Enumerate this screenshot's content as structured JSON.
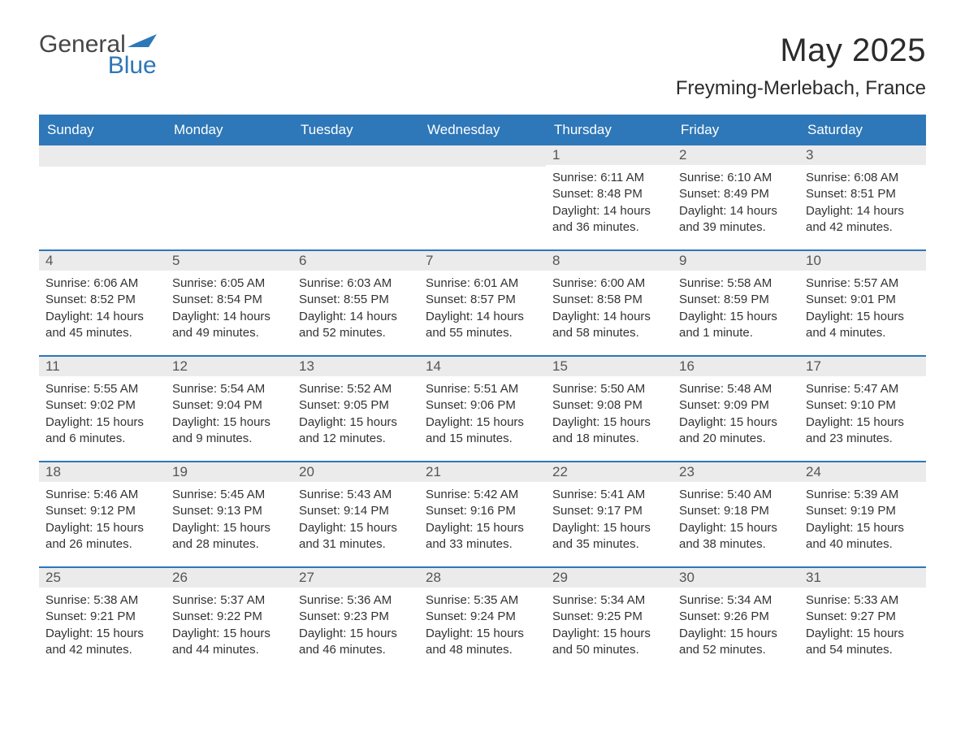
{
  "logo": {
    "general": "General",
    "blue": "Blue"
  },
  "title": "May 2025",
  "location": "Freyming-Merlebach, France",
  "colors": {
    "header_bg": "#2e77b8",
    "header_text": "#ffffff",
    "daynum_bg": "#ebebeb",
    "daynum_text": "#555555",
    "body_text": "#333333",
    "rule": "#2e77b8",
    "page_bg": "#ffffff"
  },
  "day_headers": [
    "Sunday",
    "Monday",
    "Tuesday",
    "Wednesday",
    "Thursday",
    "Friday",
    "Saturday"
  ],
  "weeks": [
    [
      {
        "blank": true
      },
      {
        "blank": true
      },
      {
        "blank": true
      },
      {
        "blank": true
      },
      {
        "n": "1",
        "sunrise": "Sunrise: 6:11 AM",
        "sunset": "Sunset: 8:48 PM",
        "daylight": "Daylight: 14 hours and 36 minutes."
      },
      {
        "n": "2",
        "sunrise": "Sunrise: 6:10 AM",
        "sunset": "Sunset: 8:49 PM",
        "daylight": "Daylight: 14 hours and 39 minutes."
      },
      {
        "n": "3",
        "sunrise": "Sunrise: 6:08 AM",
        "sunset": "Sunset: 8:51 PM",
        "daylight": "Daylight: 14 hours and 42 minutes."
      }
    ],
    [
      {
        "n": "4",
        "sunrise": "Sunrise: 6:06 AM",
        "sunset": "Sunset: 8:52 PM",
        "daylight": "Daylight: 14 hours and 45 minutes."
      },
      {
        "n": "5",
        "sunrise": "Sunrise: 6:05 AM",
        "sunset": "Sunset: 8:54 PM",
        "daylight": "Daylight: 14 hours and 49 minutes."
      },
      {
        "n": "6",
        "sunrise": "Sunrise: 6:03 AM",
        "sunset": "Sunset: 8:55 PM",
        "daylight": "Daylight: 14 hours and 52 minutes."
      },
      {
        "n": "7",
        "sunrise": "Sunrise: 6:01 AM",
        "sunset": "Sunset: 8:57 PM",
        "daylight": "Daylight: 14 hours and 55 minutes."
      },
      {
        "n": "8",
        "sunrise": "Sunrise: 6:00 AM",
        "sunset": "Sunset: 8:58 PM",
        "daylight": "Daylight: 14 hours and 58 minutes."
      },
      {
        "n": "9",
        "sunrise": "Sunrise: 5:58 AM",
        "sunset": "Sunset: 8:59 PM",
        "daylight": "Daylight: 15 hours and 1 minute."
      },
      {
        "n": "10",
        "sunrise": "Sunrise: 5:57 AM",
        "sunset": "Sunset: 9:01 PM",
        "daylight": "Daylight: 15 hours and 4 minutes."
      }
    ],
    [
      {
        "n": "11",
        "sunrise": "Sunrise: 5:55 AM",
        "sunset": "Sunset: 9:02 PM",
        "daylight": "Daylight: 15 hours and 6 minutes."
      },
      {
        "n": "12",
        "sunrise": "Sunrise: 5:54 AM",
        "sunset": "Sunset: 9:04 PM",
        "daylight": "Daylight: 15 hours and 9 minutes."
      },
      {
        "n": "13",
        "sunrise": "Sunrise: 5:52 AM",
        "sunset": "Sunset: 9:05 PM",
        "daylight": "Daylight: 15 hours and 12 minutes."
      },
      {
        "n": "14",
        "sunrise": "Sunrise: 5:51 AM",
        "sunset": "Sunset: 9:06 PM",
        "daylight": "Daylight: 15 hours and 15 minutes."
      },
      {
        "n": "15",
        "sunrise": "Sunrise: 5:50 AM",
        "sunset": "Sunset: 9:08 PM",
        "daylight": "Daylight: 15 hours and 18 minutes."
      },
      {
        "n": "16",
        "sunrise": "Sunrise: 5:48 AM",
        "sunset": "Sunset: 9:09 PM",
        "daylight": "Daylight: 15 hours and 20 minutes."
      },
      {
        "n": "17",
        "sunrise": "Sunrise: 5:47 AM",
        "sunset": "Sunset: 9:10 PM",
        "daylight": "Daylight: 15 hours and 23 minutes."
      }
    ],
    [
      {
        "n": "18",
        "sunrise": "Sunrise: 5:46 AM",
        "sunset": "Sunset: 9:12 PM",
        "daylight": "Daylight: 15 hours and 26 minutes."
      },
      {
        "n": "19",
        "sunrise": "Sunrise: 5:45 AM",
        "sunset": "Sunset: 9:13 PM",
        "daylight": "Daylight: 15 hours and 28 minutes."
      },
      {
        "n": "20",
        "sunrise": "Sunrise: 5:43 AM",
        "sunset": "Sunset: 9:14 PM",
        "daylight": "Daylight: 15 hours and 31 minutes."
      },
      {
        "n": "21",
        "sunrise": "Sunrise: 5:42 AM",
        "sunset": "Sunset: 9:16 PM",
        "daylight": "Daylight: 15 hours and 33 minutes."
      },
      {
        "n": "22",
        "sunrise": "Sunrise: 5:41 AM",
        "sunset": "Sunset: 9:17 PM",
        "daylight": "Daylight: 15 hours and 35 minutes."
      },
      {
        "n": "23",
        "sunrise": "Sunrise: 5:40 AM",
        "sunset": "Sunset: 9:18 PM",
        "daylight": "Daylight: 15 hours and 38 minutes."
      },
      {
        "n": "24",
        "sunrise": "Sunrise: 5:39 AM",
        "sunset": "Sunset: 9:19 PM",
        "daylight": "Daylight: 15 hours and 40 minutes."
      }
    ],
    [
      {
        "n": "25",
        "sunrise": "Sunrise: 5:38 AM",
        "sunset": "Sunset: 9:21 PM",
        "daylight": "Daylight: 15 hours and 42 minutes."
      },
      {
        "n": "26",
        "sunrise": "Sunrise: 5:37 AM",
        "sunset": "Sunset: 9:22 PM",
        "daylight": "Daylight: 15 hours and 44 minutes."
      },
      {
        "n": "27",
        "sunrise": "Sunrise: 5:36 AM",
        "sunset": "Sunset: 9:23 PM",
        "daylight": "Daylight: 15 hours and 46 minutes."
      },
      {
        "n": "28",
        "sunrise": "Sunrise: 5:35 AM",
        "sunset": "Sunset: 9:24 PM",
        "daylight": "Daylight: 15 hours and 48 minutes."
      },
      {
        "n": "29",
        "sunrise": "Sunrise: 5:34 AM",
        "sunset": "Sunset: 9:25 PM",
        "daylight": "Daylight: 15 hours and 50 minutes."
      },
      {
        "n": "30",
        "sunrise": "Sunrise: 5:34 AM",
        "sunset": "Sunset: 9:26 PM",
        "daylight": "Daylight: 15 hours and 52 minutes."
      },
      {
        "n": "31",
        "sunrise": "Sunrise: 5:33 AM",
        "sunset": "Sunset: 9:27 PM",
        "daylight": "Daylight: 15 hours and 54 minutes."
      }
    ]
  ]
}
